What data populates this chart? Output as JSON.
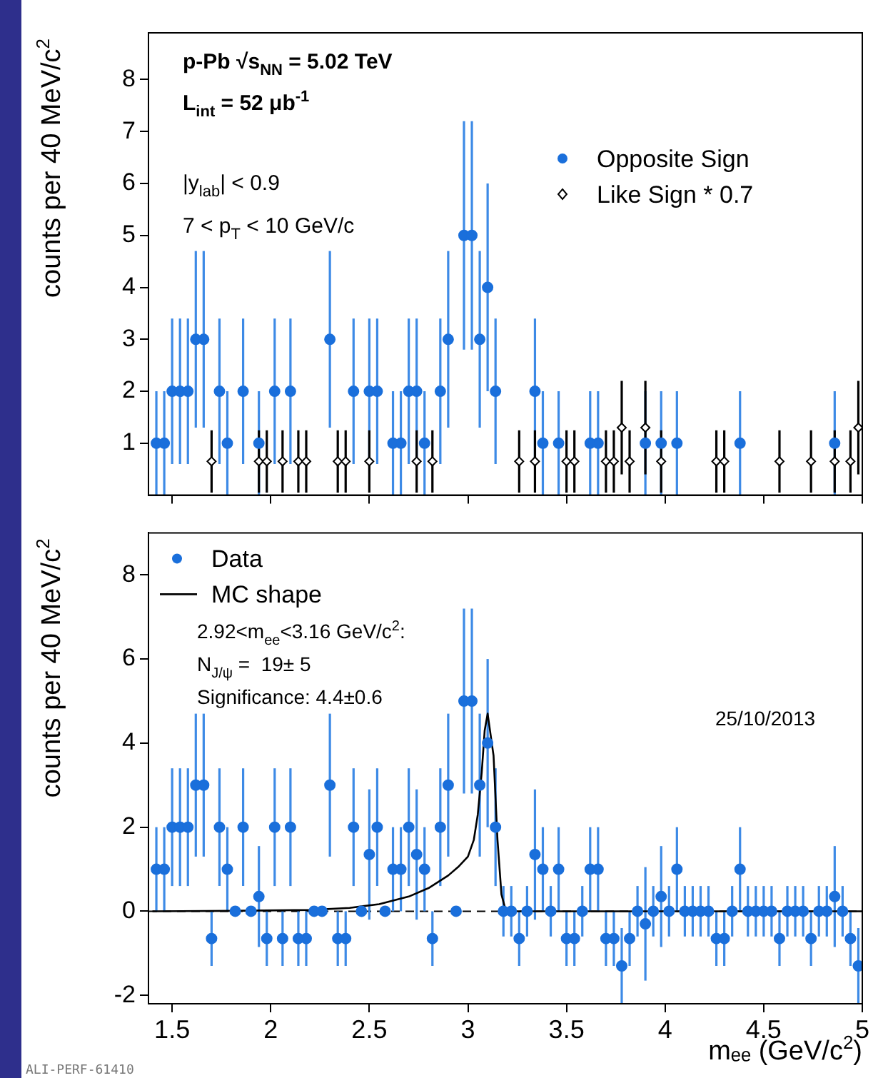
{
  "chart_data": [
    {
      "type": "scatter",
      "ylabel": "counts per 40 MeV/c$^{2}$",
      "legend": "top right",
      "tick_labels": "y",
      "xlim": [
        1.38,
        5.0
      ],
      "xticks": [
        1.5,
        2,
        2.5,
        3,
        3.5,
        4,
        4.5,
        5
      ],
      "ylim": [
        0,
        8.9
      ],
      "yticks": [
        1,
        2,
        3,
        4,
        5,
        6,
        7,
        8
      ],
      "annotations": [
        "p-Pb √s$_{NN}$ = 5.02 TeV",
        "L$_{int}$ = 52 μb$^{-1}$",
        "|y$_{lab}$| < 0.9",
        "7 < p$_{T}$ < 10 GeV/c"
      ],
      "x": [
        1.42,
        1.46,
        1.5,
        1.54,
        1.58,
        1.62,
        1.66,
        1.7,
        1.74,
        1.78,
        1.82,
        1.86,
        1.9,
        1.94,
        1.98,
        2.02,
        2.06,
        2.1,
        2.14,
        2.18,
        2.22,
        2.26,
        2.3,
        2.34,
        2.38,
        2.42,
        2.46,
        2.5,
        2.54,
        2.58,
        2.62,
        2.66,
        2.7,
        2.74,
        2.78,
        2.82,
        2.86,
        2.9,
        2.94,
        2.98,
        3.02,
        3.06,
        3.1,
        3.14,
        3.18,
        3.22,
        3.26,
        3.3,
        3.34,
        3.38,
        3.42,
        3.46,
        3.5,
        3.54,
        3.58,
        3.62,
        3.66,
        3.7,
        3.74,
        3.78,
        3.82,
        3.86,
        3.9,
        3.94,
        3.98,
        4.02,
        4.06,
        4.1,
        4.14,
        4.18,
        4.22,
        4.26,
        4.3,
        4.34,
        4.38,
        4.42,
        4.46,
        4.5,
        4.54,
        4.58,
        4.62,
        4.66,
        4.7,
        4.74,
        4.78,
        4.82,
        4.86,
        4.9,
        4.94,
        4.98
      ],
      "series": [
        {
          "name": "Opposite Sign",
          "color": "#1a6fdb",
          "marker": "circle",
          "values": [
            1,
            1,
            2,
            2,
            2,
            3,
            3,
            null,
            2,
            1,
            null,
            2,
            null,
            1,
            null,
            2,
            null,
            2,
            null,
            null,
            null,
            null,
            3,
            null,
            null,
            2,
            null,
            2,
            2,
            null,
            1,
            1,
            2,
            2,
            1,
            null,
            2,
            3,
            null,
            5,
            5,
            3,
            4,
            2,
            null,
            null,
            null,
            null,
            2,
            1,
            null,
            1,
            null,
            null,
            null,
            1,
            1,
            null,
            null,
            null,
            null,
            null,
            1,
            null,
            1,
            null,
            1,
            null,
            null,
            null,
            null,
            null,
            null,
            null,
            1,
            null,
            null,
            null,
            null,
            null,
            null,
            null,
            null,
            null,
            null,
            null,
            1,
            null,
            null,
            null
          ],
          "errors": [
            1,
            1,
            1.4,
            1.4,
            1.4,
            1.7,
            1.7,
            null,
            1.4,
            1,
            null,
            1.4,
            null,
            1,
            null,
            1.4,
            null,
            1.4,
            null,
            null,
            null,
            null,
            1.7,
            null,
            null,
            1.4,
            null,
            1.4,
            1.4,
            null,
            1,
            1,
            1.4,
            1.4,
            1,
            null,
            1.4,
            1.7,
            null,
            2.2,
            2.2,
            1.7,
            2,
            1.4,
            null,
            null,
            null,
            null,
            1.4,
            1,
            null,
            1,
            null,
            null,
            null,
            1,
            1,
            null,
            null,
            null,
            null,
            null,
            1,
            null,
            1,
            null,
            1,
            null,
            null,
            null,
            null,
            null,
            null,
            null,
            1,
            null,
            null,
            null,
            null,
            null,
            null,
            null,
            null,
            null,
            null,
            null,
            1,
            null,
            null,
            null
          ]
        },
        {
          "name": "Like Sign * 0.7",
          "color": "#000000",
          "marker": "diamond",
          "values": [
            null,
            null,
            null,
            null,
            null,
            null,
            null,
            0.65,
            null,
            null,
            null,
            null,
            null,
            0.65,
            0.65,
            null,
            0.65,
            null,
            0.65,
            0.65,
            null,
            null,
            null,
            0.65,
            0.65,
            null,
            null,
            0.65,
            null,
            null,
            null,
            null,
            null,
            0.65,
            null,
            0.65,
            null,
            null,
            null,
            null,
            null,
            null,
            null,
            null,
            null,
            null,
            0.65,
            null,
            0.65,
            null,
            null,
            null,
            0.65,
            0.65,
            null,
            null,
            null,
            0.65,
            0.65,
            1.3,
            0.65,
            null,
            1.3,
            null,
            0.65,
            null,
            null,
            null,
            null,
            null,
            null,
            0.65,
            0.65,
            null,
            null,
            null,
            null,
            null,
            null,
            0.65,
            null,
            null,
            null,
            0.65,
            null,
            null,
            0.65,
            null,
            0.65,
            1.3
          ],
          "errors": [
            null,
            null,
            null,
            null,
            null,
            null,
            null,
            0.6,
            null,
            null,
            null,
            null,
            null,
            0.6,
            0.6,
            null,
            0.6,
            null,
            0.6,
            0.6,
            null,
            null,
            null,
            0.6,
            0.6,
            null,
            null,
            0.6,
            null,
            null,
            null,
            null,
            null,
            0.6,
            null,
            0.6,
            null,
            null,
            null,
            null,
            null,
            null,
            null,
            null,
            null,
            null,
            0.6,
            null,
            0.6,
            null,
            null,
            null,
            0.6,
            0.6,
            null,
            null,
            null,
            0.6,
            0.6,
            0.9,
            0.6,
            null,
            0.9,
            null,
            0.6,
            null,
            null,
            null,
            null,
            null,
            null,
            0.6,
            0.6,
            null,
            null,
            null,
            null,
            null,
            null,
            0.6,
            null,
            null,
            null,
            0.6,
            null,
            null,
            0.6,
            null,
            0.6,
            0.9
          ]
        }
      ]
    },
    {
      "type": "scatter",
      "xlabel": "mₑₑ (GeV/c$^{2}$)",
      "ylabel": "counts per 40 MeV/c$^{2}$",
      "legend": "top left",
      "xlim": [
        1.38,
        5.0
      ],
      "xticks": [
        1.5,
        2,
        2.5,
        3,
        3.5,
        4,
        4.5,
        5
      ],
      "ylim": [
        -2.2,
        9.0
      ],
      "yticks": [
        -2,
        0,
        2,
        4,
        6,
        8
      ],
      "annotations": [
        "2.92<m$_{ee}$<3.16 GeV/c$^{2}$:",
        "N$_{J/ψ}$ =  19± 5",
        "Significance: 4.4±0.6",
        "25/10/2013",
        "ALI-PERF-61410"
      ],
      "ref_lines": [
        {
          "axis": "y",
          "value": 0,
          "color": "#000000",
          "line_style": "dashed"
        }
      ],
      "x": [
        1.42,
        1.46,
        1.5,
        1.54,
        1.58,
        1.62,
        1.66,
        1.7,
        1.74,
        1.78,
        1.82,
        1.86,
        1.9,
        1.94,
        1.98,
        2.02,
        2.06,
        2.1,
        2.14,
        2.18,
        2.22,
        2.26,
        2.3,
        2.34,
        2.38,
        2.42,
        2.46,
        2.5,
        2.54,
        2.58,
        2.62,
        2.66,
        2.7,
        2.74,
        2.78,
        2.82,
        2.86,
        2.9,
        2.94,
        2.98,
        3.02,
        3.06,
        3.1,
        3.14,
        3.18,
        3.22,
        3.26,
        3.3,
        3.34,
        3.38,
        3.42,
        3.46,
        3.5,
        3.54,
        3.58,
        3.62,
        3.66,
        3.7,
        3.74,
        3.78,
        3.82,
        3.86,
        3.9,
        3.94,
        3.98,
        4.02,
        4.06,
        4.1,
        4.14,
        4.18,
        4.22,
        4.26,
        4.3,
        4.34,
        4.38,
        4.42,
        4.46,
        4.5,
        4.54,
        4.58,
        4.62,
        4.66,
        4.7,
        4.74,
        4.78,
        4.82,
        4.86,
        4.9,
        4.94,
        4.98
      ],
      "series": [
        {
          "name": "Data",
          "color": "#1a6fdb",
          "marker": "circle",
          "values": [
            1,
            1,
            2,
            2,
            2,
            3,
            3,
            -0.65,
            2,
            1,
            0,
            2,
            0,
            0.35,
            -0.65,
            2,
            -0.65,
            2,
            -0.65,
            -0.65,
            0,
            0,
            3,
            -0.65,
            -0.65,
            2,
            0,
            1.35,
            2,
            0,
            1,
            1,
            2,
            1.35,
            1,
            -0.65,
            2,
            3,
            0,
            5,
            5,
            3,
            4,
            2,
            0,
            0,
            -0.65,
            0,
            1.35,
            1,
            0,
            1,
            -0.65,
            -0.65,
            0,
            1,
            1,
            -0.65,
            -0.65,
            -1.3,
            -0.65,
            0,
            -0.3,
            0,
            0.35,
            0,
            1,
            0,
            0,
            0,
            0,
            -0.65,
            -0.65,
            0,
            1,
            0,
            0,
            0,
            0,
            -0.65,
            0,
            0,
            0,
            -0.65,
            0,
            0,
            0.35,
            0,
            -0.65,
            -1.3
          ],
          "errors": [
            1,
            1,
            1.4,
            1.4,
            1.4,
            1.7,
            1.7,
            0.65,
            1.4,
            1,
            null,
            1.4,
            null,
            1.2,
            0.65,
            1.4,
            0.65,
            1.4,
            0.65,
            0.65,
            null,
            null,
            1.7,
            0.65,
            0.65,
            1.4,
            null,
            1.55,
            1.4,
            null,
            1,
            1,
            1.4,
            1.55,
            1,
            0.65,
            1.4,
            1.7,
            null,
            2.2,
            2.2,
            1.7,
            2,
            1.4,
            0.6,
            0.6,
            0.65,
            0.6,
            1.55,
            1,
            0.6,
            1,
            0.65,
            0.65,
            0.6,
            1,
            1,
            0.65,
            0.65,
            0.9,
            0.65,
            0.6,
            1.35,
            0.6,
            1.2,
            0.6,
            1,
            0.6,
            0.6,
            0.6,
            0.6,
            0.65,
            0.65,
            0.6,
            1,
            0.6,
            0.6,
            0.6,
            0.6,
            0.65,
            0.6,
            0.6,
            0.6,
            0.65,
            0.6,
            0.6,
            1.2,
            0.6,
            0.65,
            0.9
          ]
        },
        {
          "name": "MC shape",
          "type": "line",
          "color": "#000000",
          "marker": "none",
          "line_style": "solid",
          "x": [
            1.4,
            1.8,
            2.2,
            2.4,
            2.55,
            2.7,
            2.8,
            2.9,
            2.95,
            3.0,
            3.03,
            3.05,
            3.07,
            3.085,
            3.1,
            3.115,
            3.13,
            3.15,
            3.17,
            3.19,
            3.25,
            5.0
          ],
          "values": [
            0,
            0.01,
            0.03,
            0.08,
            0.17,
            0.35,
            0.55,
            0.85,
            1.05,
            1.3,
            1.7,
            2.3,
            3.3,
            4.3,
            4.7,
            4.2,
            3.7,
            1.7,
            0.4,
            0.05,
            0,
            0
          ]
        }
      ]
    }
  ]
}
